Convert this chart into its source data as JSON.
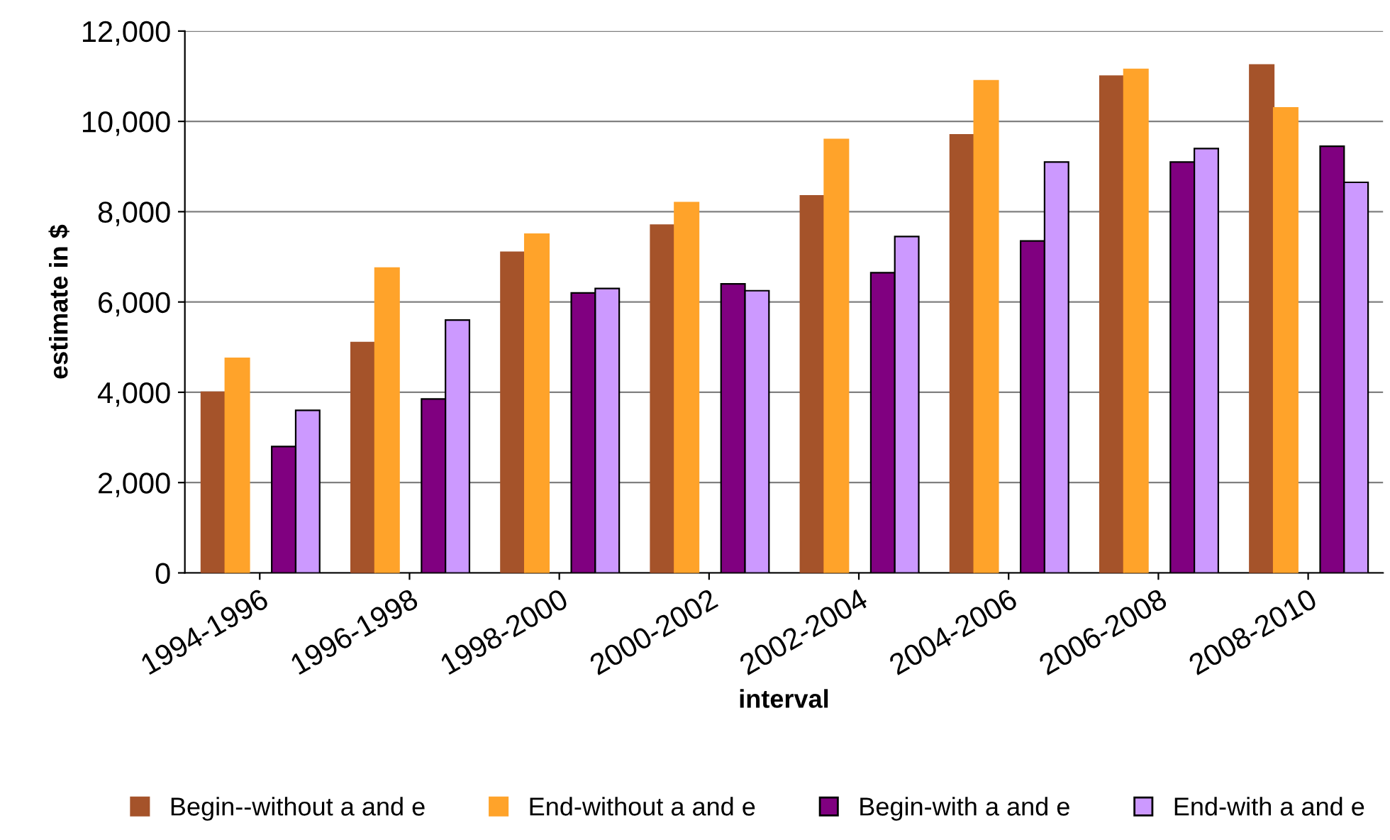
{
  "chart_data": {
    "type": "bar",
    "xlabel": "interval",
    "ylabel": "estimate in $",
    "categories": [
      "1994-1996",
      "1996-1998",
      "1998-2000",
      "2000-2002",
      "2002-2004",
      "2004-2006",
      "2006-2008",
      "2008-2010"
    ],
    "series": [
      {
        "name": "Begin--without a and e",
        "color": "#a5532a",
        "values": [
          4000,
          5100,
          7100,
          7700,
          8350,
          9700,
          11000,
          11250
        ]
      },
      {
        "name": "End-without a and e",
        "color": "#ffa32a",
        "values": [
          4750,
          6750,
          7500,
          8200,
          9600,
          10900,
          11150,
          10300
        ]
      },
      {
        "name": "Begin-with a and e",
        "color": "#800080",
        "values": [
          2800,
          3850,
          6200,
          6400,
          6650,
          7350,
          9100,
          9450
        ]
      },
      {
        "name": "End-with a and e",
        "color": "#cc99ff",
        "values": [
          3600,
          5600,
          6300,
          6250,
          7450,
          9100,
          9400,
          8650
        ]
      }
    ],
    "ylim": [
      0,
      12000
    ],
    "yticks": [
      {
        "value": 0,
        "label": "0"
      },
      {
        "value": 2000,
        "label": "2,000"
      },
      {
        "value": 4000,
        "label": "4,000"
      },
      {
        "value": 6000,
        "label": "6,000"
      },
      {
        "value": 8000,
        "label": "8,000"
      },
      {
        "value": 10000,
        "label": "10,000"
      },
      {
        "value": 12000,
        "label": "12,000"
      }
    ],
    "grid": "y",
    "legend": "bottom"
  }
}
